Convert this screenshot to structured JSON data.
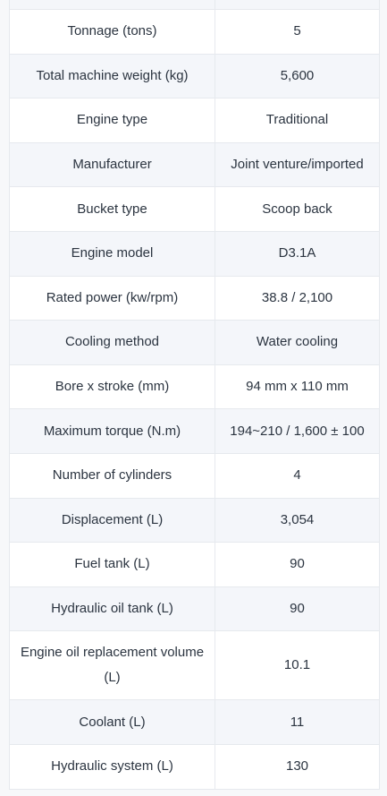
{
  "spec_table": {
    "rows": [
      {
        "label": "Tonnage (tons)",
        "value": "5"
      },
      {
        "label": "Total machine weight (kg)",
        "value": "5,600"
      },
      {
        "label": "Engine type",
        "value": "Traditional"
      },
      {
        "label": "Manufacturer",
        "value": "Joint venture/imported"
      },
      {
        "label": "Bucket type",
        "value": "Scoop back"
      },
      {
        "label": "Engine model",
        "value": "D3.1A"
      },
      {
        "label": "Rated power (kw/rpm)",
        "value": "38.8 / 2,100"
      },
      {
        "label": "Cooling method",
        "value": "Water cooling"
      },
      {
        "label": "Bore x stroke (mm)",
        "value": "94 mm x 110 mm"
      },
      {
        "label": "Maximum torque (N.m)",
        "value": "194~210 / 1,600 ± 100"
      },
      {
        "label": "Number of cylinders",
        "value": "4"
      },
      {
        "label": "Displacement (L)",
        "value": "3,054"
      },
      {
        "label": "Fuel tank (L)",
        "value": "90"
      },
      {
        "label": "Hydraulic oil tank (L)",
        "value": "90"
      },
      {
        "label": "Engine oil replacement volume (L)",
        "value": "10.1"
      },
      {
        "label": "Coolant (L)",
        "value": "11"
      },
      {
        "label": "Hydraulic system (L)",
        "value": "130"
      }
    ]
  }
}
